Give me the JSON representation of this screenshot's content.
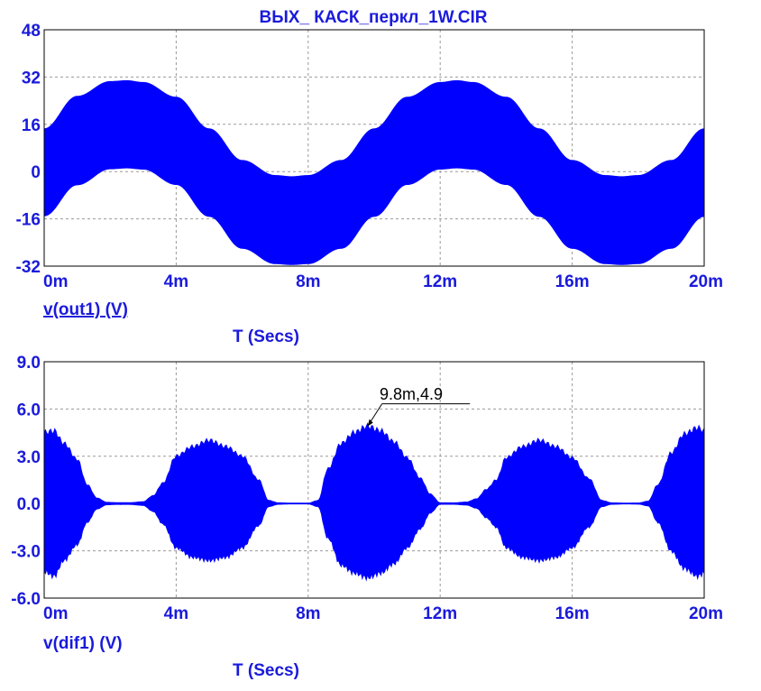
{
  "title": "ВЫХ_ КАСК_перкл_1W.CIR",
  "colors": {
    "trace": "#0000ff",
    "label": "#1a1adc",
    "grid": "#9a9a9a"
  },
  "chart_data": [
    {
      "type": "line",
      "name": "top-plot",
      "ylabel": "v(out1) (V)",
      "xlabel": "T (Secs)",
      "xlim": [
        0,
        20
      ],
      "ylim": [
        -32,
        48
      ],
      "x_ticks": [
        0,
        4,
        8,
        12,
        16,
        20
      ],
      "x_tick_labels": [
        "0m",
        "4m",
        "8m",
        "12m",
        "16m",
        "20m"
      ],
      "y_ticks": [
        48,
        32,
        16,
        0,
        -16,
        -32
      ],
      "y_tick_labels": [
        "48",
        "32",
        "16",
        "0",
        "-16",
        "-32"
      ],
      "grid": true,
      "series": [
        {
          "x": [
            0,
            1,
            2,
            2.5,
            3,
            4,
            5,
            6,
            7,
            7.5,
            8,
            9,
            10,
            11,
            12,
            12.5,
            13,
            14,
            15,
            16,
            17,
            17.5,
            18,
            19,
            20
          ],
          "upper": [
            14.5,
            25.5,
            30.5,
            30.8,
            30.2,
            25.2,
            14.5,
            3.8,
            -1.3,
            -1.7,
            -1.3,
            3.8,
            14.5,
            25.2,
            30.2,
            30.8,
            30.2,
            25.2,
            14.5,
            3.8,
            -1.3,
            -1.7,
            -1.3,
            3.8,
            14.5
          ],
          "lower": [
            -15,
            -4.5,
            0.9,
            1.2,
            0.8,
            -4.4,
            -15.2,
            -26,
            -31.2,
            -31.5,
            -31.2,
            -26,
            -15.2,
            -4.4,
            0.8,
            1.2,
            0.8,
            -4.4,
            -15.2,
            -26,
            -31.2,
            -31.5,
            -31.2,
            -26,
            -15.2
          ]
        }
      ]
    },
    {
      "type": "line",
      "name": "bottom-plot",
      "ylabel": "v(dif1) (V)",
      "xlabel": "T (Secs)",
      "xlim": [
        0,
        20
      ],
      "ylim": [
        -6,
        9
      ],
      "x_ticks": [
        0,
        4,
        8,
        12,
        16,
        20
      ],
      "x_tick_labels": [
        "0m",
        "4m",
        "8m",
        "12m",
        "16m",
        "20m"
      ],
      "y_ticks": [
        9,
        6,
        3,
        0,
        -3,
        -6
      ],
      "y_tick_labels": [
        "9.0",
        "6.0",
        "3.0",
        "0.0",
        "-3.0",
        "-6.0"
      ],
      "grid": true,
      "annotation": {
        "text": "9.8m,4.9",
        "x": 9.8,
        "y": 4.9
      },
      "series": [
        {
          "x": [
            0,
            0.3,
            0.6,
            1.0,
            1.3,
            1.6,
            1.9,
            2.2,
            2.6,
            3.0,
            3.3,
            3.6,
            4.0,
            4.5,
            5.0,
            5.5,
            6.0,
            6.5,
            6.8,
            7.1,
            7.5,
            8.0,
            8.3,
            8.6,
            9.0,
            9.4,
            9.8,
            10.2,
            10.6,
            11.0,
            11.4,
            11.7,
            12.0,
            12.4,
            12.8,
            13.1,
            13.4,
            13.7,
            14.0,
            14.5,
            15.0,
            15.5,
            16.0,
            16.5,
            16.9,
            17.2,
            17.6,
            18.0,
            18.3,
            18.6,
            19.0,
            19.4,
            19.8,
            20.0
          ],
          "upper": [
            4.5,
            4.6,
            3.8,
            2.8,
            1.2,
            0.35,
            0.08,
            0.06,
            0.06,
            0.12,
            0.5,
            1.3,
            3.0,
            3.6,
            4.0,
            3.6,
            3.0,
            1.5,
            0.2,
            0.05,
            0.03,
            0.03,
            0.2,
            2.2,
            3.8,
            4.5,
            4.9,
            4.6,
            3.9,
            2.9,
            1.6,
            0.6,
            0.05,
            0.05,
            0.1,
            0.3,
            0.9,
            1.5,
            2.9,
            3.6,
            4.0,
            3.6,
            2.9,
            1.6,
            0.2,
            0.05,
            0.03,
            0.04,
            0.15,
            1.2,
            3.2,
            4.4,
            4.8,
            4.6
          ],
          "lower": [
            -4.3,
            -4.6,
            -3.6,
            -2.6,
            -1.2,
            -0.35,
            -0.08,
            -0.06,
            -0.06,
            -0.12,
            -0.5,
            -1.3,
            -2.8,
            -3.4,
            -3.6,
            -3.4,
            -2.8,
            -1.4,
            -0.2,
            -0.05,
            -0.03,
            -0.03,
            -0.2,
            -2.2,
            -3.9,
            -4.4,
            -4.7,
            -4.4,
            -3.8,
            -2.8,
            -1.6,
            -0.6,
            -0.05,
            -0.05,
            -0.1,
            -0.3,
            -0.9,
            -1.5,
            -2.8,
            -3.4,
            -3.6,
            -3.4,
            -2.8,
            -1.5,
            -0.2,
            -0.05,
            -0.03,
            -0.04,
            -0.15,
            -1.2,
            -3.0,
            -4.1,
            -4.6,
            -4.4
          ]
        }
      ]
    }
  ]
}
